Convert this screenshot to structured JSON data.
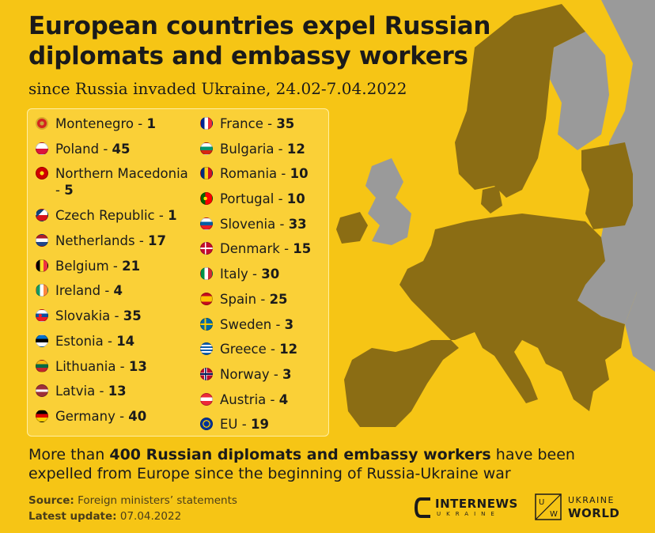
{
  "header": {
    "title": "European countries expel Russian diplomats and embassy workers",
    "subtitle": "since Russia invaded Ukraine, 24.02-7.04.2022"
  },
  "colors": {
    "background": "#f6c515",
    "expelled_country": "#8b6d14",
    "other_land": "#9a9a9a"
  },
  "list_left": [
    {
      "name": "Montenegro",
      "count": "1"
    },
    {
      "name": "Poland",
      "count": "45"
    },
    {
      "name": "Northern Macedonia",
      "count": "5"
    },
    {
      "name": "Czech Republic",
      "count": "1"
    },
    {
      "name": "Netherlands",
      "count": "17"
    },
    {
      "name": "Belgium",
      "count": "21"
    },
    {
      "name": "Ireland",
      "count": "4"
    },
    {
      "name": "Slovakia",
      "count": "35"
    },
    {
      "name": "Estonia",
      "count": "14"
    },
    {
      "name": "Lithuania",
      "count": "13"
    },
    {
      "name": "Latvia",
      "count": "13"
    },
    {
      "name": "Germany",
      "count": "40"
    }
  ],
  "list_right": [
    {
      "name": "France",
      "count": "35"
    },
    {
      "name": "Bulgaria",
      "count": "12"
    },
    {
      "name": "Romania",
      "count": "10"
    },
    {
      "name": "Portugal",
      "count": "10"
    },
    {
      "name": "Slovenia",
      "count": "33"
    },
    {
      "name": "Denmark",
      "count": "15"
    },
    {
      "name": "Italy",
      "count": "30"
    },
    {
      "name": "Spain",
      "count": "25"
    },
    {
      "name": "Sweden",
      "count": "3"
    },
    {
      "name": "Greece",
      "count": "12"
    },
    {
      "name": "Norway",
      "count": "3"
    },
    {
      "name": "Austria",
      "count": "4"
    },
    {
      "name": "EU",
      "count": "19"
    }
  ],
  "summary": {
    "before": "More than ",
    "bold": "400 Russian diplomats and embassy workers",
    "after": " have been expelled from Europe since the beginning of Russia-Ukraine war"
  },
  "footer": {
    "source_label": "Source:",
    "source_value": " Foreign ministers’ statements",
    "update_label": "Latest update:",
    "update_value": " 07.04.2022"
  },
  "logos": {
    "internews_name": "INTERNEWS",
    "internews_sub": "UKRAINE",
    "uw_letters": "U W",
    "uw_line1": "UKRAINE",
    "uw_line2": "WORLD"
  },
  "flag_icons": [
    "montenegro-flag",
    "poland-flag",
    "north-macedonia-flag",
    "czech-flag",
    "netherlands-flag",
    "belgium-flag",
    "ireland-flag",
    "slovakia-flag",
    "estonia-flag",
    "lithuania-flag",
    "latvia-flag",
    "germany-flag",
    "france-flag",
    "bulgaria-flag",
    "romania-flag",
    "portugal-flag",
    "slovenia-flag",
    "denmark-flag",
    "italy-flag",
    "spain-flag",
    "sweden-flag",
    "greece-flag",
    "norway-flag",
    "austria-flag",
    "eu-flag"
  ]
}
